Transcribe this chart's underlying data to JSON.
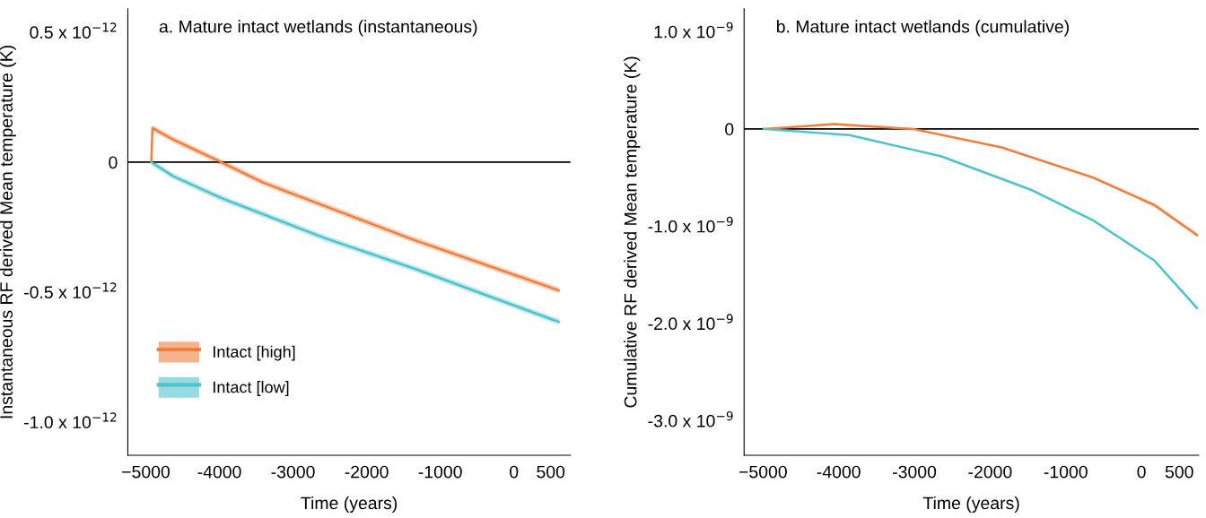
{
  "chart_data": [
    {
      "type": "line",
      "title": "a. Mature intact wetlands (instantaneous)",
      "xlabel": "Time (years)",
      "ylabel": "Instantaneous RF derived Mean temperature (K)",
      "xlim": [
        -5244,
        768
      ],
      "xticks": [
        {
          "value": -5000,
          "label": "−5000"
        },
        {
          "value": -4000,
          "label": "-4000"
        },
        {
          "value": -3000,
          "label": "-3000"
        },
        {
          "value": -2000,
          "label": "-2000"
        },
        {
          "value": -1000,
          "label": "-1000"
        },
        0,
        500
      ],
      "ylim": [
        -1.128e-12,
        5.9e-13
      ],
      "yticks": [
        {
          "value": 5e-13,
          "label": "0.5 x 10$^{−12}$"
        },
        0,
        {
          "value": -5e-13,
          "label": "-0.5 x 10$^{−12}$"
        },
        {
          "value": -1e-12,
          "label": "-1.0 x 10$^{−12}$"
        }
      ],
      "grid": false,
      "legend": "bottom left",
      "ref_lines": [
        {
          "axis": "y",
          "value": 0,
          "color": "#000000"
        }
      ],
      "series": [
        {
          "name": "Intact [high]",
          "color": "#f07f3c",
          "x": [
            -4925,
            -4910,
            -4622,
            -3976,
            -3402,
            -1378,
            610
          ],
          "values": [
            0,
            1.31e-13,
            8.6e-14,
            0,
            -7.9e-14,
            -2.97e-13,
            -4.93e-13
          ],
          "lower": [
            -1e-14,
            1.19e-13,
            7.4e-14,
            -1.2e-14,
            -9.1e-14,
            -3.09e-13,
            -5.05e-13
          ],
          "upper": [
            1e-14,
            1.43e-13,
            9.8e-14,
            1.2e-14,
            -6.7e-14,
            -2.85e-13,
            -4.81e-13
          ]
        },
        {
          "name": "Intact [low]",
          "color": "#4fc3cc",
          "x": [
            -4925,
            -4622,
            -3976,
            -2561,
            -1378,
            537,
            610
          ],
          "values": [
            0,
            -5.5e-14,
            -1.38e-13,
            -2.93e-13,
            -4.07e-13,
            -6.07e-13,
            -6.14e-13
          ],
          "lower": [
            -1.2e-14,
            -6.7e-14,
            -1.5e-13,
            -3.05e-13,
            -4.19e-13,
            -6.19e-13,
            -6.26e-13
          ],
          "upper": [
            1.2e-14,
            -4.3e-14,
            -1.26e-13,
            -2.81e-13,
            -3.95e-13,
            -5.95e-13,
            -6.02e-13
          ]
        }
      ]
    },
    {
      "type": "line",
      "title": "b. Mature intact wetlands (cumulative)",
      "xlabel": "Time (years)",
      "ylabel": "Cumulative RF derived Mean temperature (K)",
      "xlim": [
        -5250,
        757
      ],
      "xticks": [
        {
          "value": -5000,
          "label": "−5000"
        },
        {
          "value": -4000,
          "label": "-4000"
        },
        {
          "value": -3000,
          "label": "-3000"
        },
        {
          "value": -2000,
          "label": "-2000"
        },
        {
          "value": -1000,
          "label": "-1000"
        },
        0,
        500
      ],
      "ylim": [
        -3.355e-09,
        1.235e-09
      ],
      "yticks": [
        {
          "value": 1e-09,
          "label": "1.0 x 10$^{−9}$"
        },
        0,
        {
          "value": -1e-09,
          "label": "-1.0 x 10$^{−9}$"
        },
        {
          "value": -2e-09,
          "label": "-2.0 x 10$^{−9}$"
        },
        {
          "value": -3e-09,
          "label": "-3.0 x 10$^{−9}$"
        }
      ],
      "grid": false,
      "ref_lines": [
        {
          "axis": "y",
          "value": 0,
          "color": "#000000"
        }
      ],
      "series": [
        {
          "color": "#f07f3c",
          "x": [
            -4990,
            -4060,
            -3018,
            -1846,
            -639,
            166,
            734
          ],
          "values": [
            0,
            5e-11,
            0,
            -1.9e-10,
            -5e-10,
            -7.8e-10,
            -1.09e-09
          ],
          "lower": [
            0,
            4e-11,
            -1e-11,
            -2e-10,
            -5.15e-10,
            -8e-10,
            -1.11e-09
          ],
          "upper": [
            0,
            6e-11,
            1e-11,
            -1.8e-10,
            -4.85e-10,
            -7.6e-10,
            -1.07e-09
          ]
        },
        {
          "color": "#4fc3cc",
          "x": [
            -4990,
            -3858,
            -2651,
            -1444,
            -639,
            166,
            734
          ],
          "values": [
            0,
            -6.3e-11,
            -2.8e-10,
            -6.3e-10,
            -9.4e-10,
            -1.35e-09,
            -1.84e-09
          ],
          "lower": [
            0,
            -6.8e-11,
            -2.85e-10,
            -6.4e-10,
            -9.5e-10,
            -1.36e-09,
            -1.855e-09
          ],
          "upper": [
            0,
            -5.8e-11,
            -2.75e-10,
            -6.2e-10,
            -9.3e-10,
            -1.34e-09,
            -1.825e-09
          ]
        }
      ]
    }
  ]
}
